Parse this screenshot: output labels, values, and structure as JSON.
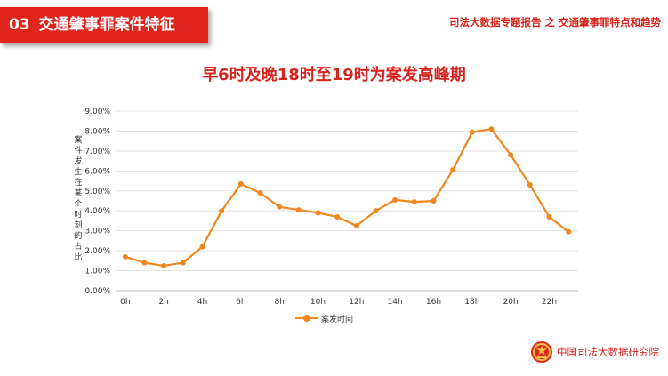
{
  "header": {
    "number": "03",
    "title": "交通肇事罪案件特征",
    "report": "司法大数据专题报告 之 交通肇事罪特点和趋势"
  },
  "chart_data": {
    "type": "line",
    "title": "早6时及晚18时至19时为案发高峰期",
    "ylabel": "案件发生在某个时刻的占比",
    "xlabel": "",
    "x": [
      "0h",
      "1h",
      "2h",
      "3h",
      "4h",
      "5h",
      "6h",
      "7h",
      "8h",
      "9h",
      "10h",
      "11h",
      "12h",
      "13h",
      "14h",
      "15h",
      "16h",
      "17h",
      "18h",
      "19h",
      "20h",
      "21h",
      "22h",
      "23h"
    ],
    "x_tick_labels": [
      "0h",
      "2h",
      "4h",
      "6h",
      "8h",
      "10h",
      "12h",
      "14h",
      "16h",
      "18h",
      "20h",
      "22h"
    ],
    "y_tick_labels": [
      "0.00%",
      "1.00%",
      "2.00%",
      "3.00%",
      "4.00%",
      "5.00%",
      "6.00%",
      "7.00%",
      "8.00%",
      "9.00%"
    ],
    "ylim": [
      0,
      9
    ],
    "grid": true,
    "legend_position": "bottom",
    "series": [
      {
        "name": "案发时间",
        "color": "#f0861c",
        "values": [
          1.7,
          1.4,
          1.25,
          1.4,
          2.2,
          4.0,
          5.35,
          4.9,
          4.2,
          4.05,
          3.9,
          3.7,
          3.25,
          4.0,
          4.55,
          4.45,
          4.5,
          6.05,
          7.95,
          8.1,
          6.8,
          5.3,
          3.7,
          2.95
        ]
      }
    ]
  },
  "footer": {
    "org": "中国司法大数据研究院",
    "emblem_icon": "national-emblem-icon"
  }
}
